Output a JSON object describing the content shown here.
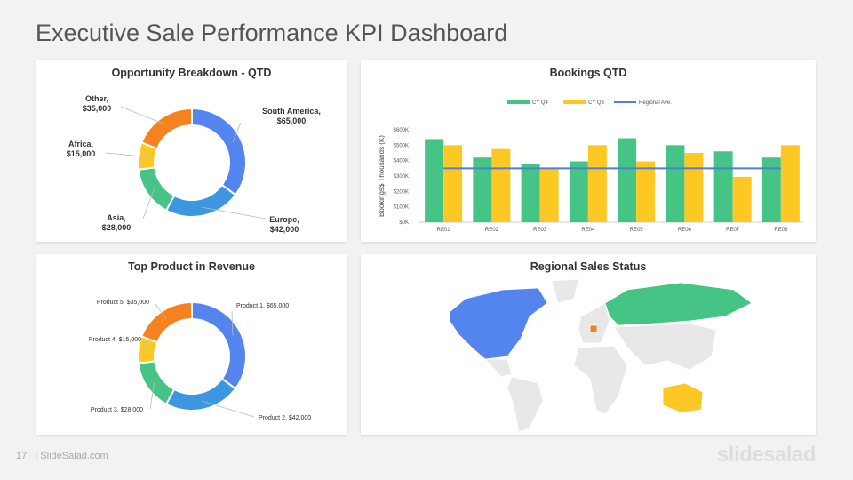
{
  "title": "Executive Sale Performance KPI Dashboard",
  "footer": {
    "page": "17",
    "site": "| SlideSalad.com",
    "logo": "slidesalad"
  },
  "colors": {
    "blue": "#5484ee",
    "lightblue": "#3d96e0",
    "green": "#45c485",
    "yellow": "#fdc823",
    "orange": "#f5821f",
    "avg": "#4f7fd6",
    "map_gray": "#e8e8e8"
  },
  "opportunity": {
    "title": "Opportunity Breakdown - QTD",
    "slices": [
      {
        "label": "South America,",
        "value_label": "$65,000",
        "value": 65000,
        "color": "blue"
      },
      {
        "label": "Europe,",
        "value_label": "$42,000",
        "value": 42000,
        "color": "lightblue"
      },
      {
        "label": "Asia,",
        "value_label": "$28,000",
        "value": 28000,
        "color": "green"
      },
      {
        "label": "Africa,",
        "value_label": "$15,000",
        "value": 15000,
        "color": "yellow"
      },
      {
        "label": "Other,",
        "value_label": "$35,000",
        "value": 35000,
        "color": "orange"
      }
    ]
  },
  "products": {
    "title": "Top Product in Revenue",
    "slices": [
      {
        "label": "Product 1,  $65,000",
        "value": 65000,
        "color": "blue"
      },
      {
        "label": "Product 2,  $42,000",
        "value": 42000,
        "color": "lightblue"
      },
      {
        "label": "Product 3,  $28,000",
        "value": 28000,
        "color": "green"
      },
      {
        "label": "Product 4,  $15,000",
        "value": 15000,
        "color": "yellow"
      },
      {
        "label": "Product 5,  $35,000",
        "value": 35000,
        "color": "orange"
      }
    ]
  },
  "chart_data": {
    "type": "bar",
    "title": "Bookings  QTD",
    "ylabel": "Bookings$ Thousands  (K)",
    "xlabel": "",
    "categories": [
      "RE01",
      "RE02",
      "RE03",
      "RE04",
      "RE05",
      "RE06",
      "RE07",
      "RE08"
    ],
    "yticks": [
      "$0K",
      "$100K",
      "$200K",
      "$300K",
      "$400K",
      "$500K",
      "$600K"
    ],
    "ylim": [
      0,
      600
    ],
    "legend_position": "top",
    "series": [
      {
        "name": "CY Q4",
        "values": [
          540,
          420,
          380,
          395,
          545,
          500,
          460,
          420
        ],
        "color": "#45c485"
      },
      {
        "name": "CY Q3",
        "values": [
          500,
          475,
          345,
          500,
          395,
          450,
          295,
          500
        ],
        "color": "#fdc823"
      }
    ],
    "line": {
      "name": "Regional Ave.",
      "value": 350,
      "color": "#4f7fd6"
    }
  },
  "map": {
    "title": "Regional Sales Status",
    "regions": [
      {
        "name": "North America",
        "color": "blue"
      },
      {
        "name": "Russia",
        "color": "green"
      },
      {
        "name": "Australia",
        "color": "yellow"
      },
      {
        "name": "Central Europe",
        "color": "orange"
      }
    ]
  }
}
